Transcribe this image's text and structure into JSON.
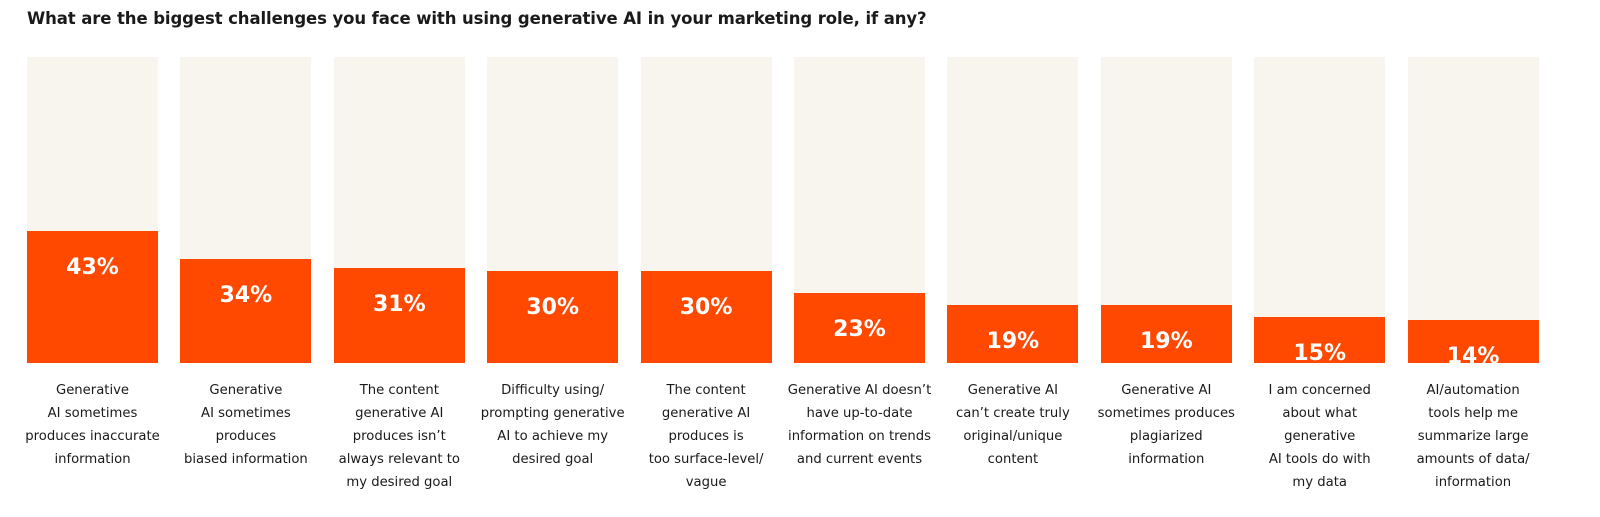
{
  "chart_data": {
    "type": "bar",
    "title": "What are the biggest challenges you face with using generative AI in your marketing role, if any?",
    "ylim": [
      0,
      100
    ],
    "grid": false,
    "colors": {
      "fill": "#FF4800",
      "track": "#F8F4EE"
    },
    "categories": [
      [
        "Generative",
        "AI sometimes",
        "produces inaccurate",
        "information"
      ],
      [
        "Generative",
        "AI sometimes",
        "produces",
        "biased information"
      ],
      [
        "The content",
        "generative AI",
        "produces isn’t",
        "always relevant to",
        "my desired goal"
      ],
      [
        "Difficulty using/",
        "prompting generative",
        "AI to achieve my",
        "desired goal"
      ],
      [
        "The content",
        "generative AI",
        "produces is",
        "too surface-level/",
        "vague"
      ],
      [
        "Generative AI doesn’t",
        "have up-to-date",
        "information on trends",
        "and current events"
      ],
      [
        "Generative AI",
        "can’t create truly",
        "original/unique",
        "content"
      ],
      [
        "Generative AI",
        "sometimes produces",
        "plagiarized",
        "information"
      ],
      [
        "I am concerned",
        "about what",
        "generative",
        "AI tools do with",
        "my data"
      ],
      [
        "AI/automation",
        "tools help me",
        "summarize large",
        "amounts of data/",
        "information"
      ]
    ],
    "values": [
      43,
      34,
      31,
      30,
      30,
      23,
      19,
      19,
      15,
      14
    ],
    "data_labels": [
      "43%",
      "34%",
      "31%",
      "30%",
      "30%",
      "23%",
      "19%",
      "19%",
      "15%",
      "14%"
    ]
  }
}
